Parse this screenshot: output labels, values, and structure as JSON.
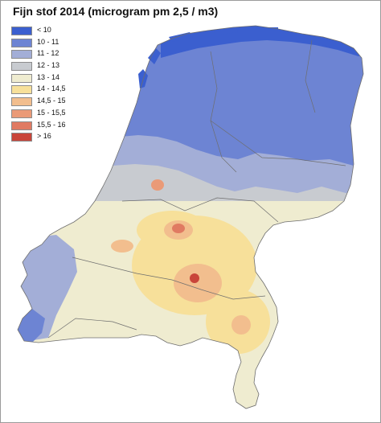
{
  "title": "Fijn stof 2014 (microgram pm 2,5 / m3)",
  "legend": [
    {
      "label": "< 10",
      "color": "#3b5fcf"
    },
    {
      "label": "10 - 11",
      "color": "#6d84d3"
    },
    {
      "label": "11 - 12",
      "color": "#a3aed7"
    },
    {
      "label": "12 - 13",
      "color": "#c8cbd0"
    },
    {
      "label": "13 - 14",
      "color": "#efecd0"
    },
    {
      "label": "14 - 14,5",
      "color": "#f7e09a"
    },
    {
      "label": "14,5 - 15",
      "color": "#f2be8e"
    },
    {
      "label": "15 - 15,5",
      "color": "#ea9a77"
    },
    {
      "label": "15,5 - 16",
      "color": "#e07a62"
    },
    {
      "label": "> 16",
      "color": "#c9453a"
    }
  ],
  "colors": {
    "sea": "#ffffff",
    "border": "#6e6e6e"
  }
}
